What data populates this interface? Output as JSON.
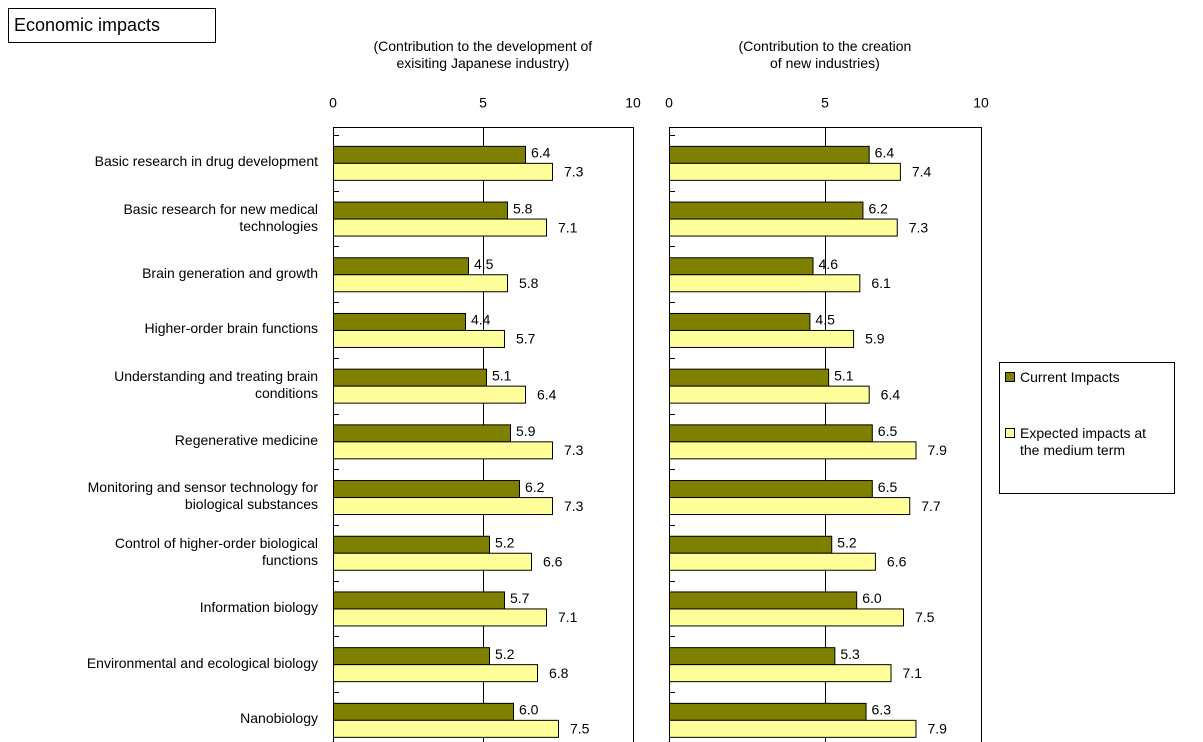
{
  "chart_data": {
    "type": "bar",
    "orientation": "horizontal",
    "title": "Economic impacts",
    "categories": [
      "Basic research in drug development",
      "Basic research for new medical\ntechnologies",
      "Brain generation and growth",
      "Higher-order brain functions",
      "Understanding and treating brain\nconditions",
      "Regenerative medicine",
      "Monitoring and sensor technology for\nbiological substances",
      "Control of higher-order biological\nfunctions",
      "Information biology",
      "Environmental and ecological biology",
      "Nanobiology"
    ],
    "series": [
      {
        "name": "Current Impacts",
        "color": "#808000"
      },
      {
        "name": "Expected impacts at\nthe medium term",
        "color": "#ffff99"
      }
    ],
    "panels": [
      {
        "title": "(Contribution to the development of\nexisiting Japanese industry)",
        "xlim": [
          0,
          10
        ],
        "xticks": [
          0,
          5,
          10
        ],
        "values": [
          [
            6.4,
            5.8,
            4.5,
            4.4,
            5.1,
            5.9,
            6.2,
            5.2,
            5.7,
            5.2,
            6.0
          ],
          [
            7.3,
            7.1,
            5.8,
            5.7,
            6.4,
            7.3,
            7.3,
            6.6,
            7.1,
            6.8,
            7.5
          ]
        ],
        "value_labels": [
          [
            "6.4",
            "5.8",
            "4.5",
            "4.4",
            "5.1",
            "5.9",
            "6.2",
            "5.2",
            "5.7",
            "5.2",
            "6.0"
          ],
          [
            "7.3",
            "7.1",
            "5.8",
            "5.7",
            "6.4",
            "7.3",
            "7.3",
            "6.6",
            "7.1",
            "6.8",
            "7.5"
          ]
        ]
      },
      {
        "title": "(Contribution to the creation\nof new industries)",
        "xlim": [
          0,
          10
        ],
        "xticks": [
          0,
          5,
          10
        ],
        "values": [
          [
            6.4,
            6.2,
            4.6,
            4.5,
            5.1,
            6.5,
            6.5,
            5.2,
            6.0,
            5.3,
            6.3
          ],
          [
            7.4,
            7.3,
            6.1,
            5.9,
            6.4,
            7.9,
            7.7,
            6.6,
            7.5,
            7.1,
            7.9
          ]
        ],
        "value_labels": [
          [
            "6.4",
            "6.2",
            "4.6",
            "4.5",
            "5.1",
            "6.5",
            "6.5",
            "5.2",
            "6.0",
            "5.3",
            "6.3"
          ],
          [
            "7.4",
            "7.3",
            "6.1",
            "5.9",
            "6.4",
            "7.9",
            "7.7",
            "6.6",
            "7.5",
            "7.1",
            "7.9"
          ]
        ]
      }
    ]
  }
}
